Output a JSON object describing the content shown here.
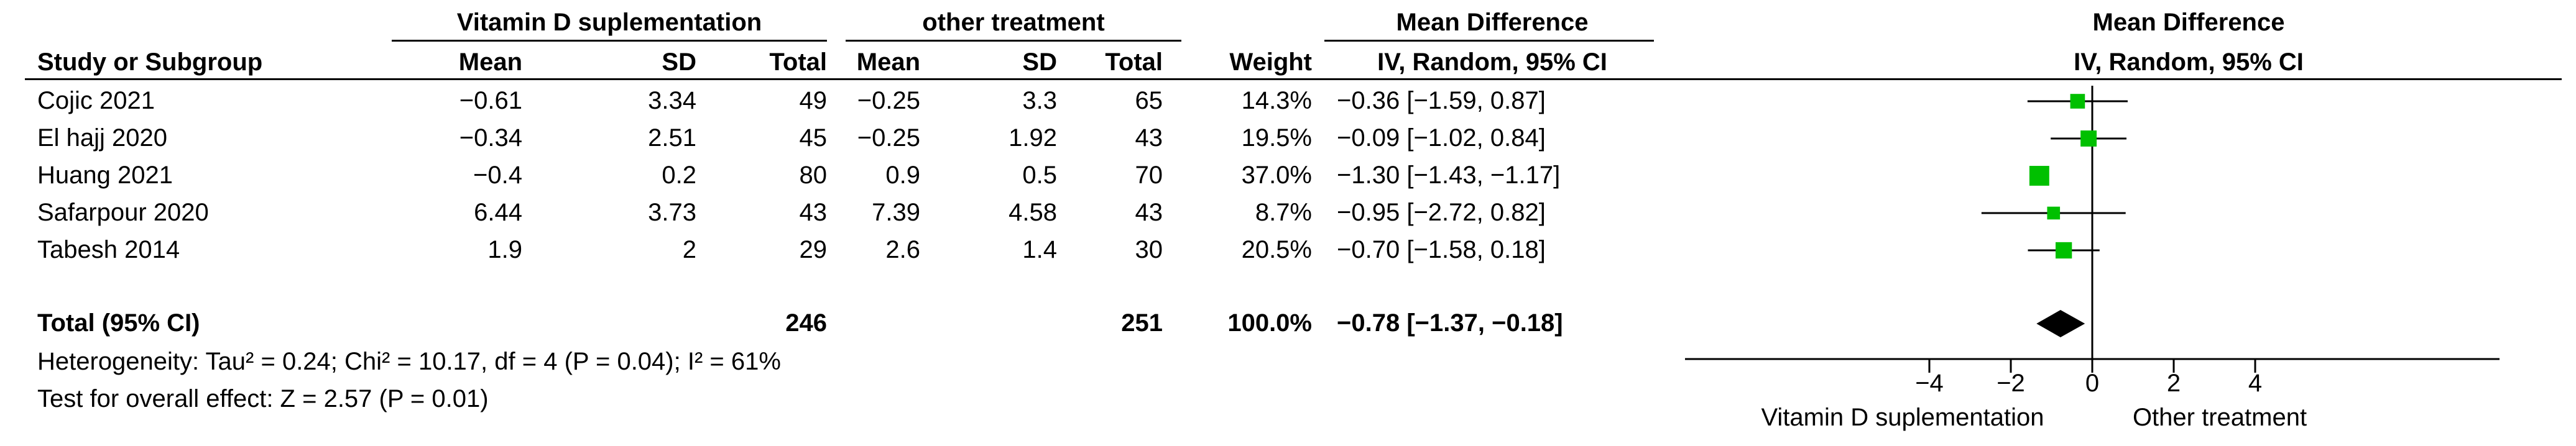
{
  "headers": {
    "group1": "Vitamin D suplementation",
    "group2": "other treatment",
    "effect_left": "Mean Difference",
    "effect_right": "Mean Difference",
    "study": "Study or Subgroup",
    "mean1": "Mean",
    "sd1": "SD",
    "total1": "Total",
    "mean2": "Mean",
    "sd2": "SD",
    "total2": "Total",
    "weight": "Weight",
    "method_left": "IV, Random, 95% CI",
    "method_right": "IV, Random, 95% CI"
  },
  "studies": [
    {
      "name": "Cojic 2021",
      "mean1": "−0.61",
      "sd1": "3.34",
      "total1": "49",
      "mean2": "−0.25",
      "sd2": "3.3",
      "total2": "65",
      "weight": "14.3%",
      "ci_text": "−0.36 [−1.59, 0.87]"
    },
    {
      "name": "El hajj 2020",
      "mean1": "−0.34",
      "sd1": "2.51",
      "total1": "45",
      "mean2": "−0.25",
      "sd2": "1.92",
      "total2": "43",
      "weight": "19.5%",
      "ci_text": "−0.09 [−1.02, 0.84]"
    },
    {
      "name": "Huang 2021",
      "mean1": "−0.4",
      "sd1": "0.2",
      "total1": "80",
      "mean2": "0.9",
      "sd2": "0.5",
      "total2": "70",
      "weight": "37.0%",
      "ci_text": "−1.30 [−1.43, −1.17]"
    },
    {
      "name": "Safarpour 2020",
      "mean1": "6.44",
      "sd1": "3.73",
      "total1": "43",
      "mean2": "7.39",
      "sd2": "4.58",
      "total2": "43",
      "weight": "8.7%",
      "ci_text": "−0.95 [−2.72, 0.82]"
    },
    {
      "name": "Tabesh 2014",
      "mean1": "1.9",
      "sd1": "2",
      "total1": "29",
      "mean2": "2.6",
      "sd2": "1.4",
      "total2": "30",
      "weight": "20.5%",
      "ci_text": "−0.70 [−1.58, 0.18]"
    }
  ],
  "total": {
    "label": "Total (95% CI)",
    "total1": "246",
    "total2": "251",
    "weight": "100.0%",
    "ci_text": "−0.78 [−1.37, −0.18]"
  },
  "heterogeneity": "Heterogeneity: Tau² = 0.24; Chi² = 10.17, df = 4 (P = 0.04); I² = 61%",
  "overall_effect": "Test for overall effect: Z = 2.57 (P = 0.01)",
  "colors": {
    "marker": "#00c000",
    "diamond": "#000000",
    "text": "#000000"
  },
  "chart_data": {
    "type": "scatter",
    "subtype": "forest-plot",
    "title": "Mean Difference",
    "subtitle": "IV, Random, 95% CI",
    "xlim": [
      -10,
      10
    ],
    "ticks": [
      -4,
      -2,
      0,
      2,
      4
    ],
    "tick_labels": [
      "−4",
      "−2",
      "0",
      "2",
      "4"
    ],
    "favours_left": "Vitamin D suplementation",
    "favours_right": "Other treatment",
    "studies": [
      {
        "name": "Cojic 2021",
        "md": -0.36,
        "lo": -1.59,
        "hi": 0.87,
        "weight": 14.3
      },
      {
        "name": "El hajj 2020",
        "md": -0.09,
        "lo": -1.02,
        "hi": 0.84,
        "weight": 19.5
      },
      {
        "name": "Huang 2021",
        "md": -1.3,
        "lo": -1.43,
        "hi": -1.17,
        "weight": 37.0
      },
      {
        "name": "Safarpour 2020",
        "md": -0.95,
        "lo": -2.72,
        "hi": 0.82,
        "weight": 8.7
      },
      {
        "name": "Tabesh 2014",
        "md": -0.7,
        "lo": -1.58,
        "hi": 0.18,
        "weight": 20.5
      }
    ],
    "pooled": {
      "md": -0.78,
      "lo": -1.37,
      "hi": -0.18
    }
  }
}
